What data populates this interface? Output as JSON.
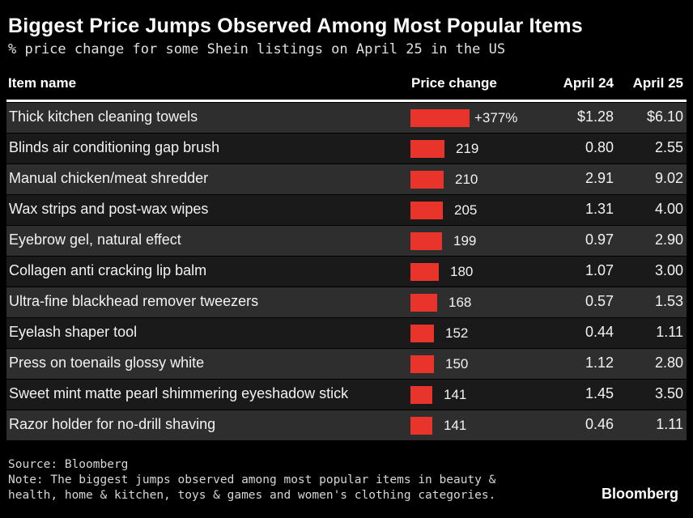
{
  "title": "Biggest Price Jumps Observed Among Most Popular Items",
  "subtitle": "% price change for some Shein listings on April 25 in the US",
  "headers": {
    "item": "Item name",
    "change": "Price change",
    "april24": "April 24",
    "april25": "April 25"
  },
  "bar_color": "#e8342a",
  "chart_data": {
    "type": "table",
    "title": "Biggest Price Jumps Observed Among Most Popular Items",
    "subtitle": "% price change for some Shein listings on April 25 in the US",
    "columns": [
      "Item name",
      "Price change",
      "April 24",
      "April 25"
    ],
    "max_change": 377,
    "rows": [
      {
        "name": "Thick kitchen cleaning towels",
        "change": 377,
        "change_label": "+377%",
        "april24": "$1.28",
        "april25": "$6.10"
      },
      {
        "name": "Blinds air conditioning gap brush",
        "change": 219,
        "change_label": "219",
        "april24": "0.80",
        "april25": "2.55"
      },
      {
        "name": "Manual chicken/meat shredder",
        "change": 210,
        "change_label": "210",
        "april24": "2.91",
        "april25": "9.02"
      },
      {
        "name": "Wax strips and post-wax wipes",
        "change": 205,
        "change_label": "205",
        "april24": "1.31",
        "april25": "4.00"
      },
      {
        "name": "Eyebrow gel, natural effect",
        "change": 199,
        "change_label": "199",
        "april24": "0.97",
        "april25": "2.90"
      },
      {
        "name": "Collagen anti cracking lip balm",
        "change": 180,
        "change_label": "180",
        "april24": "1.07",
        "april25": "3.00"
      },
      {
        "name": "Ultra-fine blackhead remover tweezers",
        "change": 168,
        "change_label": "168",
        "april24": "0.57",
        "april25": "1.53"
      },
      {
        "name": "Eyelash shaper tool",
        "change": 152,
        "change_label": "152",
        "april24": "0.44",
        "april25": "1.11"
      },
      {
        "name": "Press on toenails glossy white",
        "change": 150,
        "change_label": "150",
        "april24": "1.12",
        "april25": "2.80"
      },
      {
        "name": "Sweet mint matte pearl shimmering eyeshadow stick",
        "change": 141,
        "change_label": "141",
        "april24": "1.45",
        "april25": "3.50"
      },
      {
        "name": "Razor holder for no-drill shaving",
        "change": 141,
        "change_label": "141",
        "april24": "0.46",
        "april25": "1.11"
      }
    ]
  },
  "footer": {
    "source": "Source: Bloomberg",
    "note_line1": "Note: The biggest jumps observed among most popular items in beauty &",
    "note_line2": "health, home & kitchen, toys & games and women's clothing categories."
  },
  "logo": "Bloomberg"
}
